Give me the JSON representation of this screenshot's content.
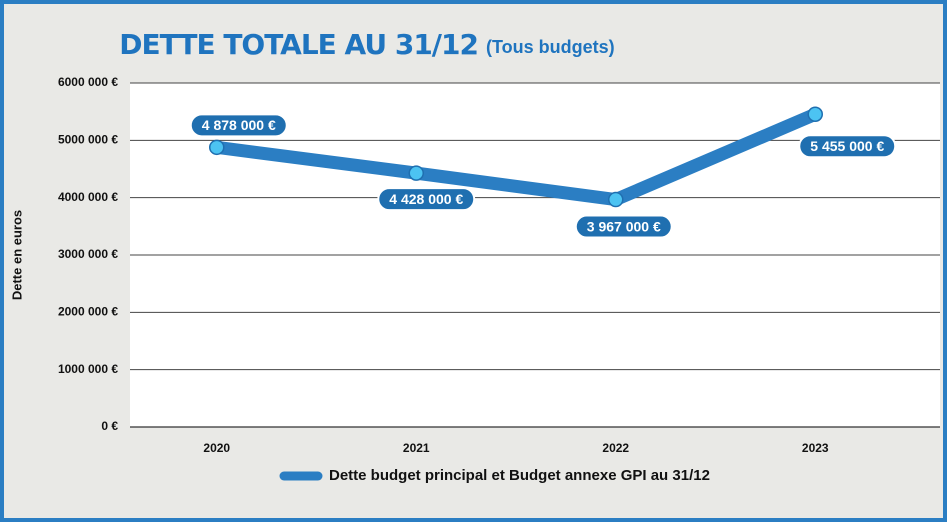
{
  "chart_data": {
    "type": "line",
    "title": "DETTE TOTALE AU 31/12",
    "subtitle": "(Tous budgets)",
    "ylabel": "Dette en euros",
    "categories": [
      "2020",
      "2021",
      "2022",
      "2023"
    ],
    "series": [
      {
        "name": "Dette budget principal et Budget annexe GPI au 31/12",
        "color": "#2b7ec3",
        "values": [
          4878000,
          4428000,
          3967000,
          5455000
        ],
        "value_labels": [
          "4 878 000 €",
          "4 428 000 €",
          "3 967 000 €",
          "5 455 000 €"
        ]
      }
    ],
    "ylim": [
      0,
      6000000
    ],
    "yticks": [
      {
        "value": 0,
        "label": "0 €"
      },
      {
        "value": 1000000,
        "label": "1000 000 €"
      },
      {
        "value": 2000000,
        "label": "2000 000 €"
      },
      {
        "value": 3000000,
        "label": "3000 000 €"
      },
      {
        "value": 4000000,
        "label": "4000 000 €"
      },
      {
        "value": 5000000,
        "label": "5000 000 €"
      },
      {
        "value": 6000000,
        "label": "6000 000 €"
      }
    ],
    "grid": true,
    "legend": "bottom"
  }
}
